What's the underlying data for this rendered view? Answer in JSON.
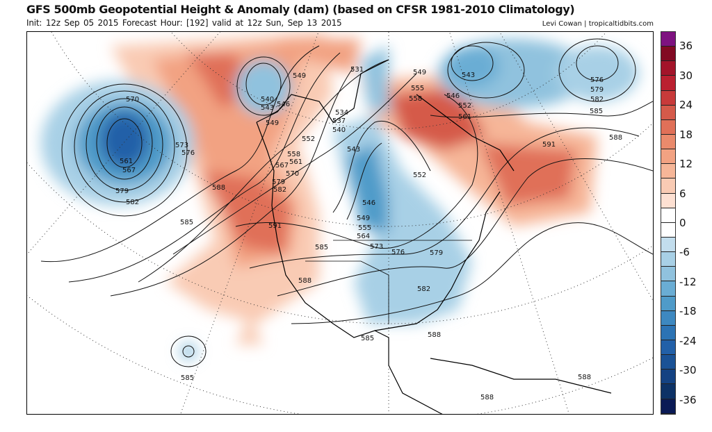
{
  "header": {
    "title": "GFS 500mb Geopotential Height & Anomaly (dam) (based on CFSR 1981-2010 Climatology)",
    "subtitle": "Init: 12z Sep 05 2015   Forecast Hour: [192]   valid at 12z Sun, Sep 13 2015",
    "credit": "Levi Cowan | tropicaltidbits.com"
  },
  "colorbar": {
    "labels": [
      "36",
      "30",
      "24",
      "18",
      "12",
      "6",
      "0",
      "-6",
      "-12",
      "-18",
      "-24",
      "-30",
      "-36"
    ],
    "colors": [
      "#7e1280",
      "#820a23",
      "#a3142a",
      "#bb2030",
      "#c83a3a",
      "#d55a4a",
      "#e07058",
      "#ea8a6c",
      "#f2a282",
      "#f6b698",
      "#f9cbb4",
      "#fde0d2",
      "#ffffff",
      "#ffffff",
      "#c2dded",
      "#a8d0e6",
      "#90c2de",
      "#6aadd4",
      "#4f9bc9",
      "#3d88c0",
      "#2c73b4",
      "#2260a8",
      "#1a5296",
      "#144282",
      "#0d3266",
      "#0a1a55"
    ]
  },
  "map": {
    "contour_labels": [
      "570",
      "561",
      "567",
      "579",
      "582",
      "573",
      "576",
      "588",
      "585",
      "591",
      "540",
      "543",
      "546",
      "549",
      "549",
      "531",
      "534",
      "537",
      "540",
      "543",
      "552",
      "558",
      "561",
      "567",
      "570",
      "579",
      "582",
      "585",
      "588",
      "573",
      "576",
      "579",
      "582",
      "546",
      "549",
      "555",
      "564",
      "549",
      "555",
      "558",
      "546",
      "552",
      "561",
      "543",
      "576",
      "579",
      "582",
      "585",
      "588",
      "591",
      "552",
      "585",
      "588",
      "588",
      "588",
      "585"
    ]
  }
}
